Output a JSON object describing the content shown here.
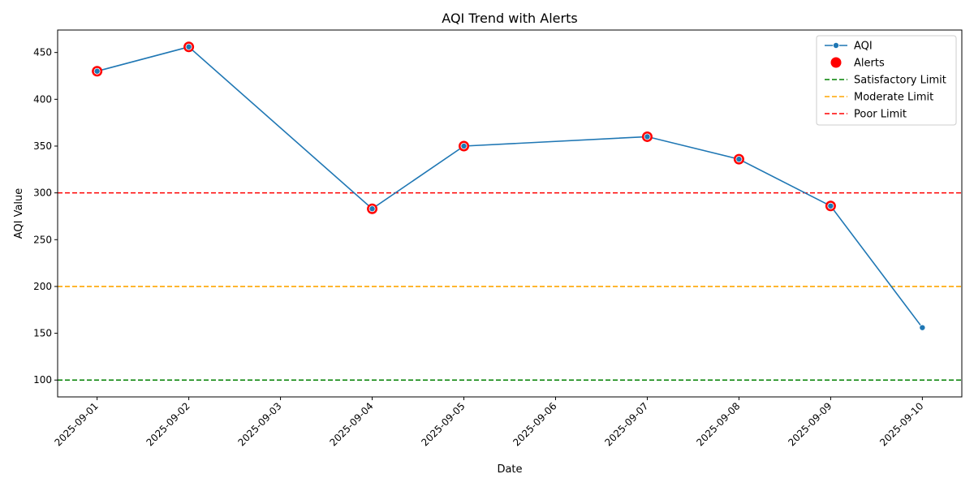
{
  "chart_data": {
    "type": "line",
    "title": "AQI Trend with Alerts",
    "xlabel": "Date",
    "ylabel": "AQI Value",
    "x_ticks": [
      "2025-09-01",
      "2025-09-02",
      "2025-09-03",
      "2025-09-04",
      "2025-09-05",
      "2025-09-06",
      "2025-09-07",
      "2025-09-08",
      "2025-09-09",
      "2025-09-10"
    ],
    "y_ticks": [
      100,
      150,
      200,
      250,
      300,
      350,
      400,
      450
    ],
    "ylim": [
      82,
      474
    ],
    "xlim": [
      "2025-08-31T13:40",
      "2025-09-10T10:20"
    ],
    "series": [
      {
        "name": "AQI",
        "color": "#1f77b4",
        "points": [
          {
            "x": "2025-09-01",
            "y": 430
          },
          {
            "x": "2025-09-02",
            "y": 456
          },
          {
            "x": "2025-09-04",
            "y": 283
          },
          {
            "x": "2025-09-05",
            "y": 350
          },
          {
            "x": "2025-09-07",
            "y": 360
          },
          {
            "x": "2025-09-08",
            "y": 336
          },
          {
            "x": "2025-09-09",
            "y": 286
          },
          {
            "x": "2025-09-10",
            "y": 156
          }
        ]
      },
      {
        "name": "Alerts",
        "color": "#ff0000",
        "points": [
          {
            "x": "2025-09-01",
            "y": 430
          },
          {
            "x": "2025-09-02",
            "y": 456
          },
          {
            "x": "2025-09-04",
            "y": 283
          },
          {
            "x": "2025-09-05",
            "y": 350
          },
          {
            "x": "2025-09-07",
            "y": 360
          },
          {
            "x": "2025-09-08",
            "y": 336
          },
          {
            "x": "2025-09-09",
            "y": 286
          }
        ]
      }
    ],
    "thresholds": [
      {
        "name": "Satisfactory Limit",
        "value": 100,
        "color": "#008000"
      },
      {
        "name": "Moderate Limit",
        "value": 200,
        "color": "#ffa500"
      },
      {
        "name": "Poor Limit",
        "value": 300,
        "color": "#ff0000"
      }
    ],
    "legend": {
      "placement": "top-right",
      "entries": [
        "AQI",
        "Alerts",
        "Satisfactory Limit",
        "Moderate Limit",
        "Poor Limit"
      ]
    },
    "grid": false
  }
}
